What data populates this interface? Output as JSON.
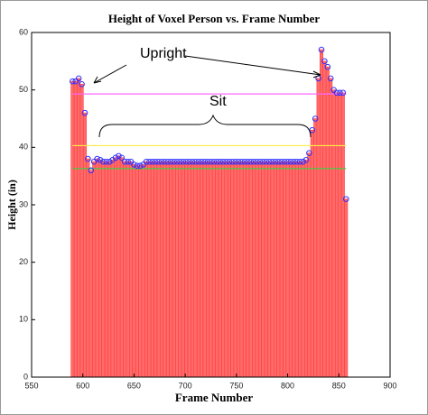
{
  "chart_data": {
    "type": "bar",
    "title": "Height of Voxel Person vs. Frame Number",
    "x_label": "Frame Number",
    "y_label": "Height (in)",
    "annotations": [
      "Upright",
      "Sit"
    ],
    "x": [
      590,
      593,
      596,
      599,
      602,
      605,
      608,
      611,
      614,
      617,
      620,
      623,
      626,
      629,
      632,
      635,
      638,
      641,
      644,
      647,
      650,
      653,
      656,
      659,
      662,
      665,
      668,
      671,
      674,
      677,
      680,
      683,
      686,
      689,
      692,
      695,
      698,
      701,
      704,
      707,
      710,
      713,
      716,
      719,
      722,
      725,
      728,
      731,
      734,
      737,
      740,
      743,
      746,
      749,
      752,
      755,
      758,
      761,
      764,
      767,
      770,
      773,
      776,
      779,
      782,
      785,
      788,
      791,
      794,
      797,
      800,
      803,
      806,
      809,
      812,
      815,
      818,
      821,
      824,
      827,
      830,
      833,
      836,
      839,
      842,
      845,
      848,
      851,
      854,
      857
    ],
    "values": [
      51.5,
      51.5,
      52,
      51,
      46,
      38,
      36,
      37.5,
      38,
      37.8,
      37.5,
      37.5,
      37.5,
      37.8,
      38.2,
      38.5,
      38.2,
      37.5,
      37.5,
      37.5,
      37,
      36.8,
      36.8,
      37,
      37.5,
      37.5,
      37.5,
      37.5,
      37.5,
      37.5,
      37.5,
      37.5,
      37.5,
      37.5,
      37.5,
      37.5,
      37.5,
      37.5,
      37.5,
      37.5,
      37.5,
      37.5,
      37.5,
      37.5,
      37.5,
      37.5,
      37.5,
      37.5,
      37.5,
      37.5,
      37.5,
      37.5,
      37.5,
      37.5,
      37.5,
      37.5,
      37.5,
      37.5,
      37.5,
      37.5,
      37.5,
      37.5,
      37.5,
      37.5,
      37.5,
      37.5,
      37.5,
      37.5,
      37.5,
      37.5,
      37.5,
      37.5,
      37.5,
      37.5,
      37.5,
      37.5,
      37.8,
      39,
      43,
      45,
      52,
      57,
      55,
      54,
      52,
      50,
      49.5,
      49.5,
      49.5,
      31
    ],
    "color": "#ff6b6b",
    "marker_color": "#3030ff",
    "reference_lines": [
      {
        "value": 49.3,
        "color": "#ff66ff"
      },
      {
        "value": 40.3,
        "color": "#ffee44"
      },
      {
        "value": 36.3,
        "color": "#44cc44"
      }
    ],
    "xlim": [
      550,
      900
    ],
    "xticks": [
      550,
      600,
      650,
      700,
      750,
      800,
      850,
      900
    ],
    "ylim": [
      0,
      60
    ],
    "yticks": [
      0,
      10,
      20,
      30,
      40,
      50,
      60
    ]
  }
}
